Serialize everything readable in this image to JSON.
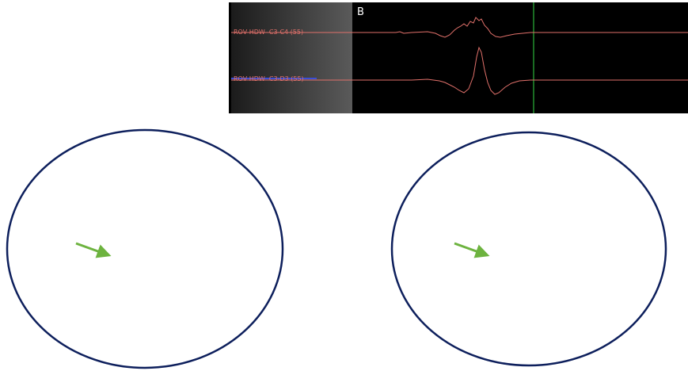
{
  "panel_label": "B",
  "channels": [
    "ROV HDW  C3-C4 (55)",
    "ROV HDW  C3-D3 (55)"
  ]
}
